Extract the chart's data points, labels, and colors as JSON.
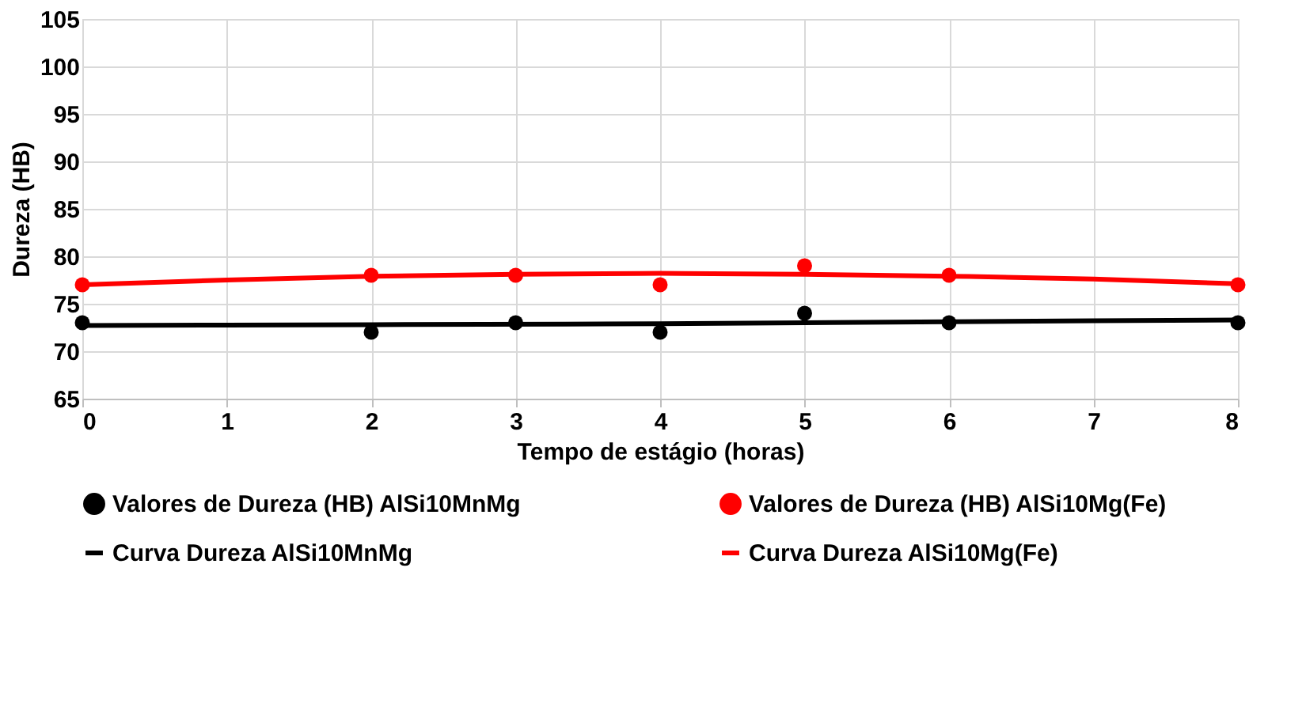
{
  "chart_data": {
    "type": "scatter",
    "xlabel": "Tempo de estágio (horas)",
    "ylabel": "Dureza (HB)",
    "xlim": [
      0,
      8
    ],
    "xticks": [
      0,
      1,
      2,
      3,
      4,
      5,
      6,
      7,
      8
    ],
    "ylim": [
      65,
      105
    ],
    "yticks": [
      65,
      70,
      75,
      80,
      85,
      90,
      95,
      100,
      105
    ],
    "grid": true,
    "legend": "bottom",
    "marker": "circle",
    "series": [
      {
        "name": "Valores de Dureza (HB) AlSi10MnMg",
        "color": "#000000",
        "x": [
          0,
          2,
          3,
          4,
          5,
          6,
          8
        ],
        "values": [
          73,
          72,
          73,
          72,
          74,
          73,
          73
        ]
      },
      {
        "name": "Valores de Dureza (HB) AlSi10Mg(Fe)",
        "color": "#ff0000",
        "x": [
          0,
          2,
          3,
          4,
          5,
          6,
          8
        ],
        "values": [
          77,
          78,
          78,
          77,
          79,
          78,
          77
        ]
      },
      {
        "name": "Curva Dureza AlSi10MnMg",
        "type": "line",
        "marker": "none",
        "color": "#000000",
        "line_style": "solid",
        "x": [
          0,
          2,
          4,
          6,
          8
        ],
        "values": [
          72.7,
          72.8,
          72.9,
          73.1,
          73.3
        ]
      },
      {
        "name": "Curva Dureza AlSi10Mg(Fe)",
        "type": "line",
        "marker": "none",
        "color": "#ff0000",
        "line_style": "solid",
        "x": [
          0,
          1,
          2,
          3,
          4,
          5,
          6,
          7,
          8
        ],
        "values": [
          77.0,
          77.5,
          77.9,
          78.1,
          78.2,
          78.1,
          77.9,
          77.6,
          77.1
        ]
      }
    ]
  }
}
